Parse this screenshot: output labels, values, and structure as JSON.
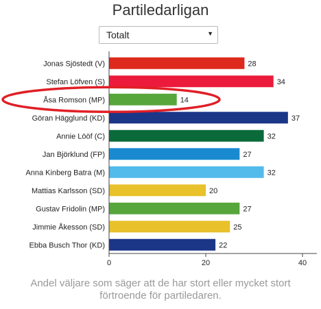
{
  "title": "Partiledarligan",
  "dropdown": {
    "selected": "Totalt"
  },
  "caption": "Andel väljare som säger att de har stort eller mycket stort förtroende för partiledaren.",
  "colors": {
    "V": "#dd2a1d",
    "S": "#ec1b3b",
    "MP": "#57a63b",
    "KD": "#1b3687",
    "C": "#0b6a3a",
    "FP": "#1a8ad0",
    "M": "#52bbec",
    "SD": "#e8c12b",
    "highlight": "#e01f26"
  },
  "chart_data": {
    "type": "bar",
    "orientation": "horizontal",
    "categories": [
      "Jonas Sjöstedt (V)",
      "Stefan Löfven (S)",
      "Åsa Romson (MP)",
      "Göran Hägglund (KD)",
      "Annie Lööf (C)",
      "Jan Björklund (FP)",
      "Anna Kinberg Batra (M)",
      "Mattias Karlsson (SD)",
      "Gustav Fridolin (MP)",
      "Jimmie Åkesson (SD)",
      "Ebba Busch Thor (KD)"
    ],
    "parties": [
      "V",
      "S",
      "MP",
      "KD",
      "C",
      "FP",
      "M",
      "SD",
      "MP",
      "SD",
      "KD"
    ],
    "values": [
      28,
      34,
      14,
      37,
      32,
      27,
      32,
      20,
      27,
      25,
      22
    ],
    "xlim": [
      0,
      40
    ],
    "xticks": [
      "0",
      "20",
      "40"
    ],
    "highlighted": "Åsa Romson (MP)"
  }
}
